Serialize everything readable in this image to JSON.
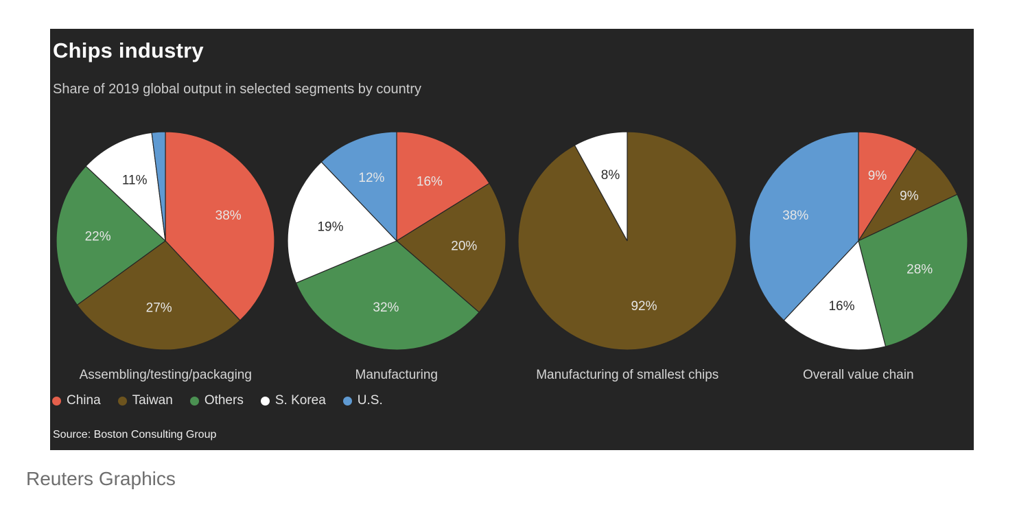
{
  "header": {
    "title": "Chips industry",
    "subtitle": "Share of 2019 global output in selected segments by country"
  },
  "panel": {
    "background": "#252525"
  },
  "legend": {
    "items": [
      {
        "label": "China",
        "color": "#e5604c"
      },
      {
        "label": "Taiwan",
        "color": "#6d541e"
      },
      {
        "label": "Others",
        "color": "#4b9152"
      },
      {
        "label": "S. Korea",
        "color": "#ffffff"
      },
      {
        "label": "U.S.",
        "color": "#5f9ad2"
      }
    ]
  },
  "source": {
    "text": "Source: Boston Consulting Group"
  },
  "footer": {
    "credit": "Reuters Graphics"
  },
  "chart_data": [
    {
      "type": "pie",
      "title": "Assembling/testing/packaging",
      "units": "percent of 2019 global output",
      "start_angle": "top",
      "direction": "clockwise",
      "slices": [
        {
          "label": "China",
          "value": 38,
          "display": "38%"
        },
        {
          "label": "Taiwan",
          "value": 27,
          "display": "27%"
        },
        {
          "label": "Others",
          "value": 22,
          "display": "22%"
        },
        {
          "label": "S. Korea",
          "value": 11,
          "display": "11%"
        },
        {
          "label": "U.S.",
          "value": 2,
          "display": ""
        }
      ]
    },
    {
      "type": "pie",
      "title": "Manufacturing",
      "units": "percent of 2019 global output",
      "start_angle": "top",
      "direction": "clockwise",
      "slices": [
        {
          "label": "China",
          "value": 16,
          "display": "16%"
        },
        {
          "label": "Taiwan",
          "value": 20,
          "display": "20%"
        },
        {
          "label": "Others",
          "value": 32,
          "display": "32%"
        },
        {
          "label": "S. Korea",
          "value": 19,
          "display": "19%"
        },
        {
          "label": "U.S.",
          "value": 12,
          "display": "12%"
        }
      ]
    },
    {
      "type": "pie",
      "title": "Manufacturing of smallest chips",
      "units": "percent of 2019 global output",
      "start_angle": "top",
      "direction": "clockwise",
      "slices": [
        {
          "label": "Taiwan",
          "value": 92,
          "display": "92%"
        },
        {
          "label": "S. Korea",
          "value": 8,
          "display": "8%"
        }
      ]
    },
    {
      "type": "pie",
      "title": "Overall value chain",
      "units": "percent of 2019 global output",
      "start_angle": "top",
      "direction": "clockwise",
      "slices": [
        {
          "label": "China",
          "value": 9,
          "display": "9%"
        },
        {
          "label": "Taiwan",
          "value": 9,
          "display": "9%"
        },
        {
          "label": "Others",
          "value": 28,
          "display": "28%"
        },
        {
          "label": "S. Korea",
          "value": 16,
          "display": "16%"
        },
        {
          "label": "U.S.",
          "value": 38,
          "display": "38%"
        }
      ]
    }
  ],
  "label_colors": {
    "on_dark_slice": "#e6e6e6",
    "on_white_slice": "#2b2b2b"
  }
}
